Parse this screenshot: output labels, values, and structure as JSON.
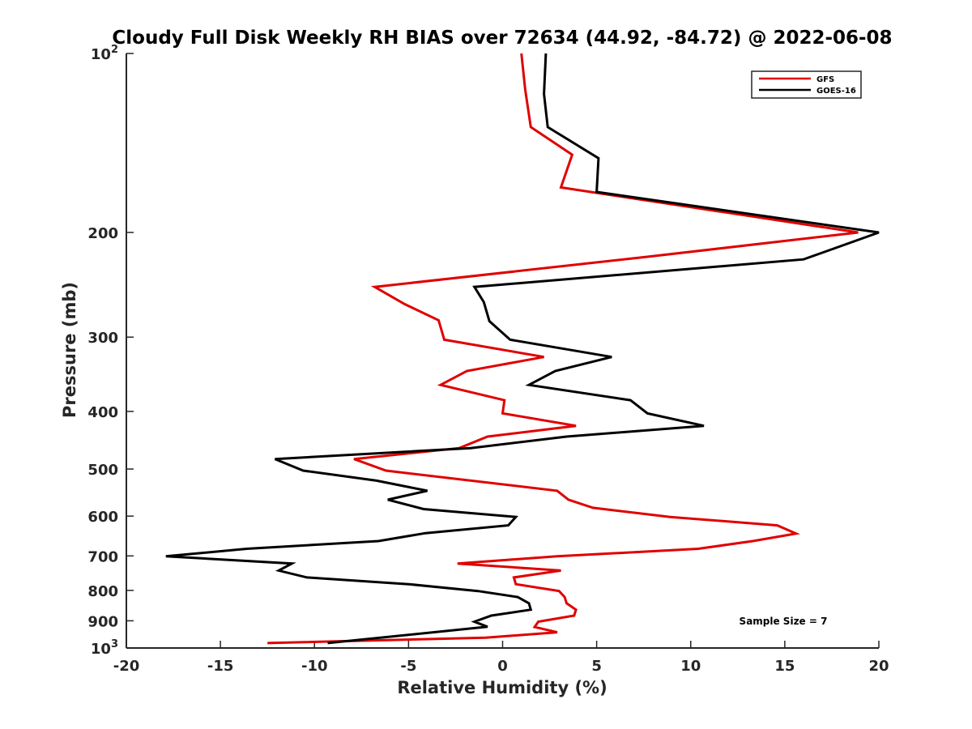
{
  "chart_data": {
    "type": "line",
    "title": "Cloudy Full Disk Weekly RH BIAS over 72634 (44.92, -84.72) @ 2022-06-08",
    "xlabel": "Relative Humidity (%)",
    "ylabel": "Pressure (mb)",
    "xlim": [
      -20,
      20
    ],
    "ylim": [
      100,
      1000
    ],
    "y_scale": "log",
    "y_reversed": true,
    "x_ticks": [
      "-20",
      "-15",
      "-10",
      "-5",
      "0",
      "5",
      "10",
      "15",
      "20"
    ],
    "y_ticks": [
      {
        "value": 100,
        "base": "10",
        "exp": "2"
      },
      {
        "value": 200,
        "label": "200"
      },
      {
        "value": 300,
        "label": "300"
      },
      {
        "value": 400,
        "label": "400"
      },
      {
        "value": 500,
        "label": "500"
      },
      {
        "value": 600,
        "label": "600"
      },
      {
        "value": 700,
        "label": "700"
      },
      {
        "value": 800,
        "label": "800"
      },
      {
        "value": 900,
        "label": "900"
      },
      {
        "value": 1000,
        "base": "10",
        "exp": "3"
      }
    ],
    "legend_position": "top-right",
    "annotation": "Sample Size = 7",
    "series": [
      {
        "name": "GFS",
        "color": "#e00000",
        "points": [
          [
            1.0,
            100
          ],
          [
            1.2,
            115
          ],
          [
            1.5,
            133
          ],
          [
            3.7,
            148
          ],
          [
            3.1,
            168
          ],
          [
            18.9,
            200
          ],
          [
            7.6,
            220
          ],
          [
            -6.8,
            247
          ],
          [
            -5.2,
            264
          ],
          [
            -3.4,
            281
          ],
          [
            -3.1,
            303
          ],
          [
            2.2,
            324
          ],
          [
            -1.9,
            342
          ],
          [
            -3.3,
            361
          ],
          [
            0.1,
            383
          ],
          [
            0.0,
            403
          ],
          [
            3.9,
            423
          ],
          [
            -0.8,
            441
          ],
          [
            -2.3,
            461
          ],
          [
            -7.9,
            481
          ],
          [
            -6.2,
            503
          ],
          [
            2.9,
            544
          ],
          [
            3.5,
            563
          ],
          [
            4.8,
            581
          ],
          [
            8.9,
            602
          ],
          [
            14.6,
            622
          ],
          [
            15.6,
            642
          ],
          [
            13.3,
            661
          ],
          [
            10.4,
            681
          ],
          [
            2.9,
            701
          ],
          [
            -2.4,
            721
          ],
          [
            3.1,
            741
          ],
          [
            0.6,
            761
          ],
          [
            0.7,
            781
          ],
          [
            3.0,
            802
          ],
          [
            3.3,
            821
          ],
          [
            3.4,
            841
          ],
          [
            3.9,
            862
          ],
          [
            3.8,
            882
          ],
          [
            1.9,
            903
          ],
          [
            1.7,
            922
          ],
          [
            2.9,
            941
          ],
          [
            -0.9,
            961
          ],
          [
            -12.5,
            981
          ]
        ]
      },
      {
        "name": "GOES-16",
        "color": "#000000",
        "points": [
          [
            2.3,
            100
          ],
          [
            2.2,
            117
          ],
          [
            2.4,
            133
          ],
          [
            5.1,
            150
          ],
          [
            5.0,
            171
          ],
          [
            20.0,
            200
          ],
          [
            16.0,
            222
          ],
          [
            -1.5,
            247
          ],
          [
            -1.0,
            262
          ],
          [
            -0.7,
            282
          ],
          [
            0.4,
            303
          ],
          [
            5.8,
            324
          ],
          [
            2.8,
            342
          ],
          [
            1.4,
            361
          ],
          [
            6.8,
            383
          ],
          [
            7.7,
            403
          ],
          [
            10.7,
            423
          ],
          [
            3.4,
            441
          ],
          [
            -1.7,
            461
          ],
          [
            -12.1,
            481
          ],
          [
            -10.6,
            503
          ],
          [
            -6.7,
            523
          ],
          [
            -4.0,
            544
          ],
          [
            -6.1,
            563
          ],
          [
            -4.2,
            584
          ],
          [
            0.7,
            602
          ],
          [
            0.3,
            622
          ],
          [
            -4.1,
            641
          ],
          [
            -6.6,
            661
          ],
          [
            -13.6,
            681
          ],
          [
            -17.9,
            701
          ],
          [
            -11.2,
            721
          ],
          [
            -11.9,
            741
          ],
          [
            -10.4,
            761
          ],
          [
            -5.0,
            781
          ],
          [
            -1.3,
            802
          ],
          [
            0.8,
            821
          ],
          [
            1.4,
            841
          ],
          [
            1.5,
            862
          ],
          [
            -0.6,
            882
          ],
          [
            -1.5,
            903
          ],
          [
            -0.8,
            921
          ],
          [
            -9.3,
            981
          ]
        ]
      }
    ]
  }
}
